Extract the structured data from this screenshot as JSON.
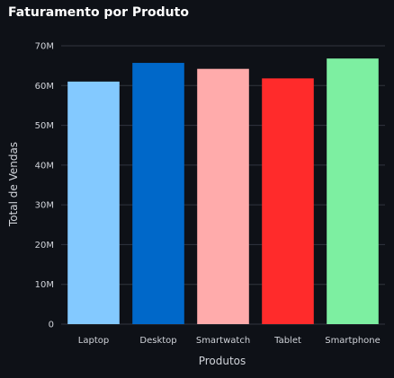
{
  "chart_data": {
    "type": "bar",
    "title": "Faturamento por Produto",
    "xlabel": "Produtos",
    "ylabel": "Total de Vendas",
    "categories": [
      "Laptop",
      "Desktop",
      "Smartwatch",
      "Tablet",
      "Smartphone"
    ],
    "values": [
      61000000,
      65700000,
      64200000,
      61800000,
      66800000
    ],
    "colors": [
      "#83c9ff",
      "#0068c9",
      "#ffabab",
      "#ff2b2b",
      "#7defa1"
    ],
    "ylim": [
      0,
      70000000
    ],
    "yticks": [
      0,
      10000000,
      20000000,
      30000000,
      40000000,
      50000000,
      60000000,
      70000000
    ],
    "ytick_labels": [
      "0",
      "10M",
      "20M",
      "30M",
      "40M",
      "50M",
      "60M",
      "70M"
    ],
    "grid": true,
    "legend": "none"
  }
}
